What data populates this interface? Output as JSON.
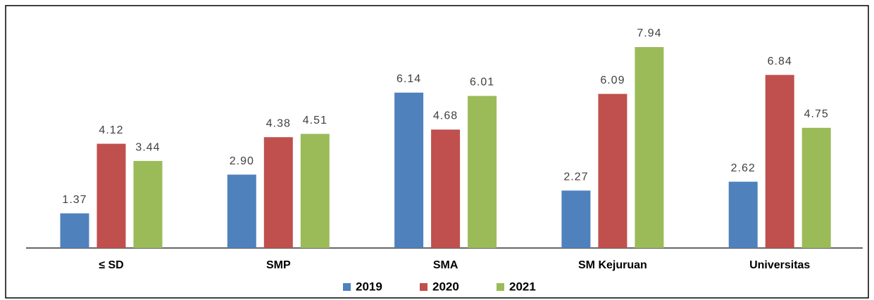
{
  "chart_data": {
    "type": "bar",
    "categories": [
      "≤ SD",
      "SMP",
      "SMA",
      "SM Kejuruan",
      "Universitas"
    ],
    "series": [
      {
        "name": "2019",
        "color": "#4f81bd",
        "values": [
          1.37,
          2.9,
          6.14,
          2.27,
          2.62
        ],
        "value_labels": [
          "1.37",
          "2.90",
          "6.14",
          "2.27",
          "2.62"
        ]
      },
      {
        "name": "2020",
        "color": "#c0504d",
        "values": [
          4.12,
          4.38,
          4.68,
          6.09,
          6.84
        ],
        "value_labels": [
          "4.12",
          "4.38",
          "4.68",
          "6.09",
          "6.84"
        ]
      },
      {
        "name": "2021",
        "color": "#9bbb59",
        "values": [
          3.44,
          4.51,
          6.01,
          7.94,
          4.75
        ],
        "value_labels": [
          "3.44",
          "4.51",
          "6.01",
          "7.94",
          "4.75"
        ]
      }
    ],
    "legend": "bottom"
  }
}
